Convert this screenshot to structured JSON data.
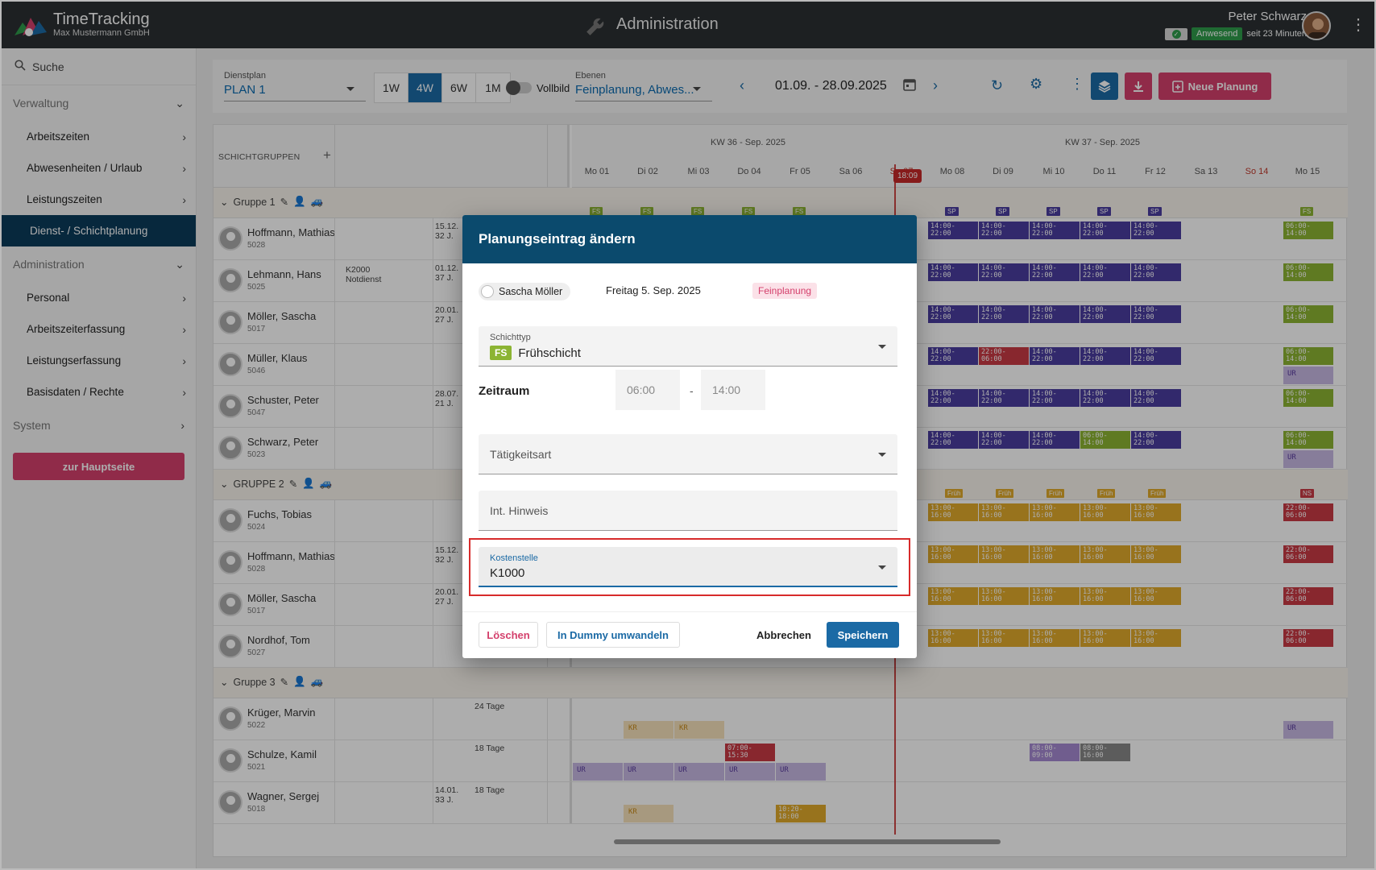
{
  "header": {
    "app_name": "TimeTracking",
    "company": "Max Mustermann GmbH",
    "page_title": "Administration",
    "user_name": "Peter Schwarz",
    "status_badge": "Anwesend",
    "status_time": "seit 23 Minuten"
  },
  "sidebar": {
    "search_label": "Suche",
    "sections": [
      {
        "label": "Verwaltung"
      },
      {
        "label": "Administration"
      },
      {
        "label": "System"
      }
    ],
    "items": [
      {
        "label": "Arbeitszeiten"
      },
      {
        "label": "Abwesenheiten / Urlaub"
      },
      {
        "label": "Leistungszeiten"
      },
      {
        "label": "Dienst- / Schichtplanung"
      },
      {
        "label": "Personal"
      },
      {
        "label": "Arbeitszeiterfassung"
      },
      {
        "label": "Leistungserfassung"
      },
      {
        "label": "Basisdaten / Rechte"
      }
    ],
    "home_button": "zur Hauptseite"
  },
  "toolbar": {
    "dienstplan_label": "Dienstplan",
    "dienstplan_value": "PLAN 1",
    "ranges": [
      "1W",
      "4W",
      "6W",
      "1M"
    ],
    "active_range": "4W",
    "fullscreen_label": "Vollbild",
    "ebenen_label": "Ebenen",
    "ebenen_value": "Feinplanung, Abwes...",
    "date_range": "01.09. - 28.09.2025",
    "new_plan_button": "Neue Planung"
  },
  "grid": {
    "groups_header": "SCHICHTGRUPPEN",
    "weeks": [
      "KW 36 - Sep. 2025",
      "KW 37 - Sep. 2025"
    ],
    "days": [
      "Mo 01",
      "Di 02",
      "Mi 03",
      "Do 04",
      "Fr 05",
      "Sa 06",
      "So 07",
      "Mo 08",
      "Di 09",
      "Mi 10",
      "Do 11",
      "Fr 12",
      "Sa 13",
      "So 14",
      "Mo 15"
    ],
    "now_time": "18:09",
    "groups": [
      {
        "name": "Gruppe 1"
      },
      {
        "name": "GRUPPE 2"
      },
      {
        "name": "Gruppe 3"
      }
    ],
    "rows": [
      {
        "name": "Hoffmann, Mathias",
        "id": "5028",
        "c2a": "15.12.",
        "c2b": "32 J."
      },
      {
        "name": "Lehmann, Hans",
        "id": "5025",
        "c1a": "K2000",
        "c1b": "Notdienst",
        "c2a": "01.12.",
        "c2b": "37 J."
      },
      {
        "name": "Möller, Sascha",
        "id": "5017",
        "c2a": "20.01.",
        "c2b": "27 J."
      },
      {
        "name": "Müller, Klaus",
        "id": "5046"
      },
      {
        "name": "Schuster, Peter",
        "id": "5047",
        "c2a": "28.07.",
        "c2b": "21 J."
      },
      {
        "name": "Schwarz, Peter",
        "id": "5023"
      },
      {
        "name": "Fuchs, Tobias",
        "id": "5024"
      },
      {
        "name": "Hoffmann, Mathias",
        "id": "5028",
        "c2a": "15.12.",
        "c2b": "32 J."
      },
      {
        "name": "Möller, Sascha",
        "id": "5017",
        "c2a": "20.01.",
        "c2b": "27 J."
      },
      {
        "name": "Nordhof, Tom",
        "id": "5027"
      },
      {
        "name": "Krüger, Marvin",
        "id": "5022",
        "c3": "24 Tage"
      },
      {
        "name": "Schulze, Kamil",
        "id": "5021",
        "c3": "18 Tage"
      },
      {
        "name": "Wagner, Sergej",
        "id": "5018",
        "c2a": "14.01.",
        "c2b": "33 J.",
        "c3": "18 Tage"
      }
    ],
    "shift_labels": {
      "p": "14:00-\n22:00",
      "g": "06:00-\n14:00",
      "y": "13:00-\n16:00",
      "r": "22:00-\n06:00",
      "ur": "UR",
      "kr": "KR",
      "fs": "FS",
      "sp": "SP",
      "fr": "Früh",
      "ns": "NS",
      "r2": "07:00-\n15:30",
      "l": "08:00-\n09:00",
      "gr": "08:00-\n16:00",
      "y2": "10:20-\n18:00",
      "g2": "06:00-\n14:00"
    }
  },
  "modal": {
    "title": "Planungseintrag ändern",
    "person": "Sascha Möller",
    "date": "Freitag 5. Sep. 2025",
    "type_badge": "Feinplanung",
    "schichttyp_label": "Schichttyp",
    "schichttyp_code": "FS",
    "schichttyp_value": "Frühschicht",
    "zeitraum_label": "Zeitraum",
    "time_from": "06:00",
    "time_to": "14:00",
    "taetigkeit_placeholder": "Tätigkeitsart",
    "hinweis_placeholder": "Int. Hinweis",
    "kostenstelle_label": "Kostenstelle",
    "kostenstelle_value": "K1000",
    "delete_button": "Löschen",
    "dummy_button": "In Dummy umwandeln",
    "cancel_button": "Abbrechen",
    "save_button": "Speichern"
  },
  "colors": {
    "accent": "#1b6aa5",
    "header": "#2b3033",
    "nav_active": "#0b3b5a",
    "danger": "#d4406c",
    "highlight": "#d72b2b"
  }
}
